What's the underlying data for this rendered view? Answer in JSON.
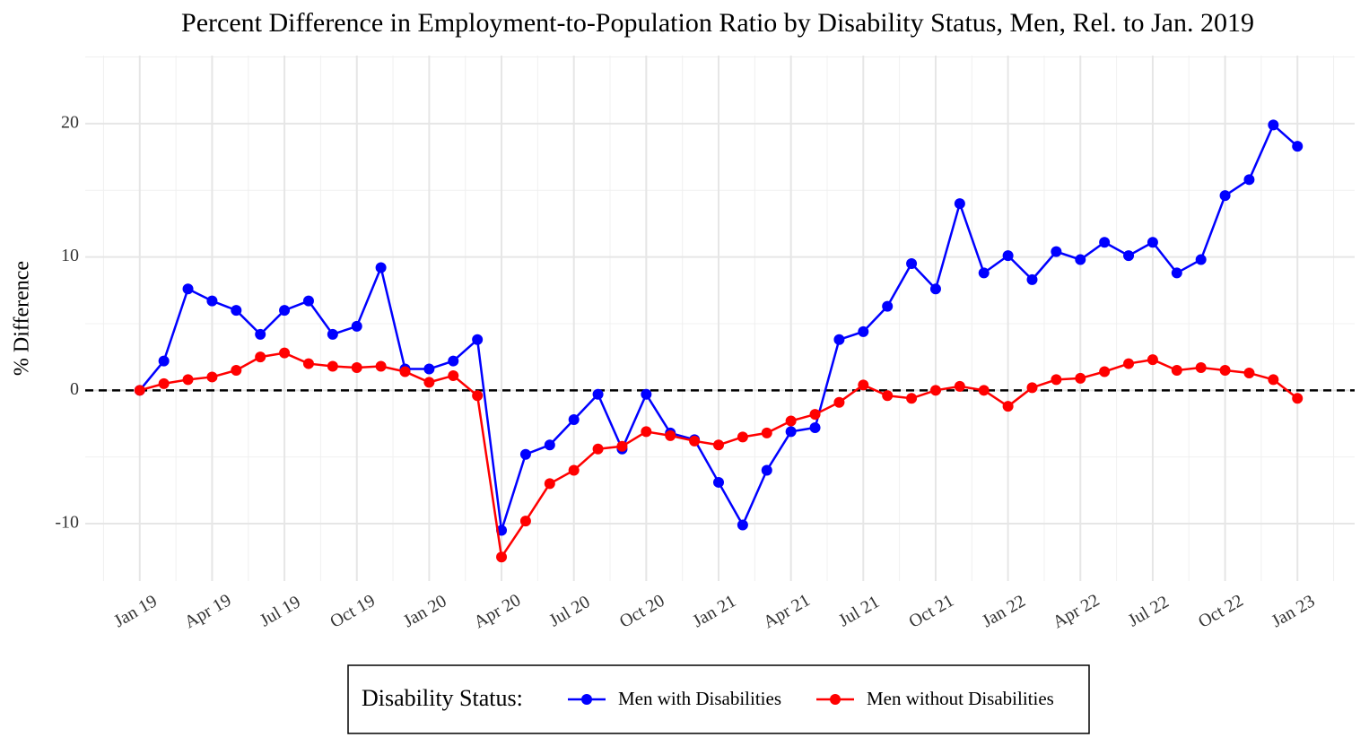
{
  "chart_data": {
    "type": "line",
    "title": "Percent Difference in Employment-to-Population Ratio by Disability Status, Men, Rel. to Jan. 2019",
    "y_label": "% Difference",
    "legend_title": "Disability Status:",
    "legend_position": "bottom",
    "grid": true,
    "hline": 0,
    "x": [
      "2019-01",
      "2019-02",
      "2019-03",
      "2019-04",
      "2019-05",
      "2019-06",
      "2019-07",
      "2019-08",
      "2019-09",
      "2019-10",
      "2019-11",
      "2019-12",
      "2020-01",
      "2020-02",
      "2020-03",
      "2020-04",
      "2020-05",
      "2020-06",
      "2020-07",
      "2020-08",
      "2020-09",
      "2020-10",
      "2020-11",
      "2020-12",
      "2021-01",
      "2021-02",
      "2021-03",
      "2021-04",
      "2021-05",
      "2021-06",
      "2021-07",
      "2021-08",
      "2021-09",
      "2021-10",
      "2021-11",
      "2021-12",
      "2022-01",
      "2022-02",
      "2022-03",
      "2022-04",
      "2022-05",
      "2022-06",
      "2022-07",
      "2022-08",
      "2022-09",
      "2022-10",
      "2022-11",
      "2022-12",
      "2023-01"
    ],
    "xlim": [
      "2018-11",
      "2023-03"
    ],
    "xticks": [
      {
        "value": "2019-01",
        "label": "Jan 19"
      },
      {
        "value": "2019-04",
        "label": "Apr 19"
      },
      {
        "value": "2019-07",
        "label": "Jul 19"
      },
      {
        "value": "2019-10",
        "label": "Oct 19"
      },
      {
        "value": "2020-01",
        "label": "Jan 20"
      },
      {
        "value": "2020-04",
        "label": "Apr 20"
      },
      {
        "value": "2020-07",
        "label": "Jul 20"
      },
      {
        "value": "2020-10",
        "label": "Oct 20"
      },
      {
        "value": "2021-01",
        "label": "Jan 21"
      },
      {
        "value": "2021-04",
        "label": "Apr 21"
      },
      {
        "value": "2021-07",
        "label": "Jul 21"
      },
      {
        "value": "2021-10",
        "label": "Oct 21"
      },
      {
        "value": "2022-01",
        "label": "Jan 22"
      },
      {
        "value": "2022-04",
        "label": "Apr 22"
      },
      {
        "value": "2022-07",
        "label": "Jul 22"
      },
      {
        "value": "2022-10",
        "label": "Oct 22"
      },
      {
        "value": "2023-01",
        "label": "Jan 23"
      }
    ],
    "ylim": [
      -14.3,
      25.1
    ],
    "yticks": [
      -10,
      0,
      10,
      20
    ],
    "series": [
      {
        "name": "Men with Disabilities",
        "color": "#0000ff",
        "values": [
          0,
          2.2,
          7.6,
          6.7,
          6.0,
          4.2,
          6.0,
          6.7,
          4.2,
          4.8,
          9.2,
          1.6,
          1.6,
          2.2,
          3.8,
          -10.5,
          -4.8,
          -4.1,
          -2.2,
          -0.3,
          -4.4,
          -0.3,
          -3.2,
          -3.7,
          -6.9,
          -10.1,
          -6.0,
          -3.1,
          -2.8,
          3.8,
          4.4,
          6.3,
          9.5,
          7.6,
          14.0,
          8.8,
          10.1,
          8.3,
          10.4,
          9.8,
          11.1,
          10.1,
          11.1,
          8.8,
          9.8,
          14.6,
          15.8,
          19.9,
          18.3
        ]
      },
      {
        "name": "Men without Disabilities",
        "color": "#ff0000",
        "values": [
          0,
          0.5,
          0.8,
          1.0,
          1.5,
          2.5,
          2.8,
          2.0,
          1.8,
          1.7,
          1.8,
          1.4,
          0.6,
          1.1,
          -0.4,
          -12.5,
          -9.8,
          -7.0,
          -6.0,
          -4.4,
          -4.2,
          -3.1,
          -3.4,
          -3.8,
          -4.1,
          -3.5,
          -3.2,
          -2.3,
          -1.8,
          -0.9,
          0.4,
          -0.4,
          -0.6,
          0.0,
          0.3,
          0.0,
          -1.2,
          0.2,
          0.8,
          0.9,
          1.4,
          2.0,
          2.3,
          1.5,
          1.7,
          1.5,
          1.3,
          0.8,
          -0.6
        ]
      }
    ]
  }
}
